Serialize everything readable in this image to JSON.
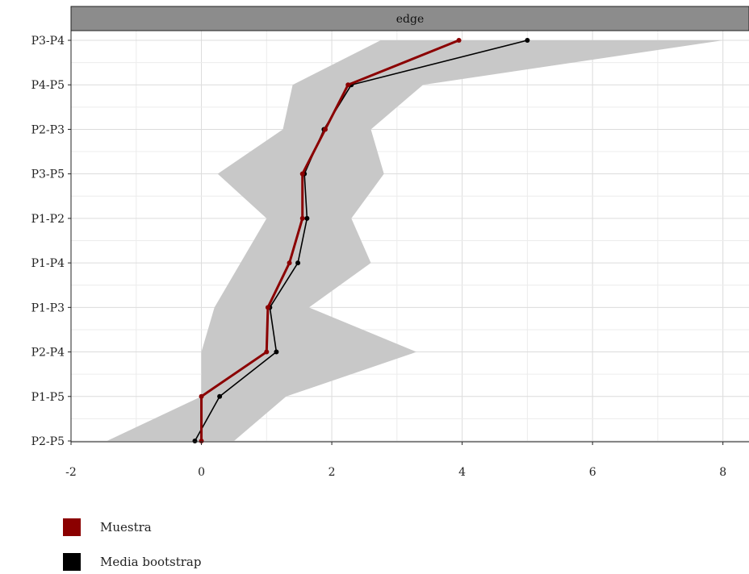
{
  "chart_data": {
    "type": "line",
    "panel_title": "edge",
    "categories": [
      "P3-P4",
      "P4-P5",
      "P2-P3",
      "P3-P5",
      "P1-P2",
      "P1-P4",
      "P1-P3",
      "P2-P4",
      "P1-P5",
      "P2-P5"
    ],
    "xlim": [
      -2,
      8.4
    ],
    "xticks": [
      -2,
      0,
      2,
      4,
      6,
      8
    ],
    "xlabel": "",
    "ylabel": "",
    "grid": true,
    "legend_position": "bottom-left",
    "series": [
      {
        "name": "Muestra",
        "color": "#8b0000",
        "values": [
          3.95,
          2.25,
          1.9,
          1.55,
          1.55,
          1.35,
          1.02,
          1.0,
          0.0,
          0.0
        ]
      },
      {
        "name": "Media bootstrap",
        "color": "#000000",
        "values": [
          5.0,
          2.3,
          1.88,
          1.58,
          1.62,
          1.48,
          1.05,
          1.15,
          0.28,
          -0.1
        ]
      }
    ],
    "band": {
      "color": "#c8c8c8",
      "lower": [
        2.75,
        1.4,
        1.25,
        0.25,
        1.0,
        0.6,
        0.2,
        0.0,
        0.0,
        -1.45
      ],
      "upper": [
        8.0,
        3.4,
        2.6,
        2.8,
        2.3,
        2.6,
        1.65,
        3.3,
        1.3,
        0.5
      ]
    }
  }
}
